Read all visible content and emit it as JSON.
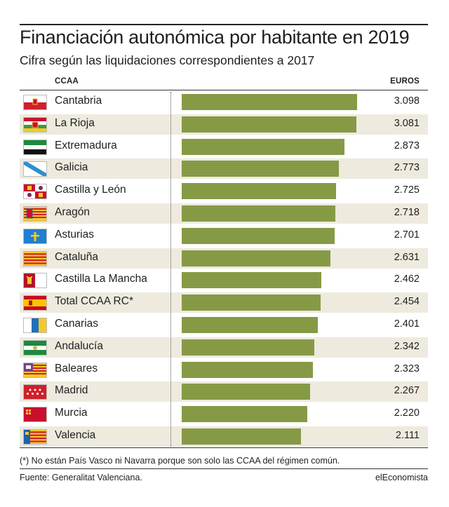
{
  "header": {
    "title": "Financiación autonómica por habitante en 2019",
    "subtitle": "Cifra según las liquidaciones correspondientes a 2017",
    "col_region": "CCAA",
    "col_value": "EUROS"
  },
  "chart_data": {
    "type": "bar",
    "orientation": "horizontal",
    "title": "Financiación autonómica por habitante en 2019",
    "subtitle": "Cifra según las liquidaciones correspondientes a 2017",
    "xlim": [
      0,
      3098
    ],
    "grid": false,
    "bar_color": "#869a46",
    "row_shade_color": "#eeeade",
    "categories": [
      "Cantabria",
      "La Rioja",
      "Extremadura",
      "Galicia",
      "Castilla y León",
      "Aragón",
      "Asturias",
      "Cataluña",
      "Castilla La Mancha",
      "Total CCAA RC*",
      "Canarias",
      "Andalucía",
      "Baleares",
      "Madrid",
      "Murcia",
      "Valencia"
    ],
    "values": [
      3098,
      3081,
      2873,
      2773,
      2725,
      2718,
      2701,
      2631,
      2462,
      2454,
      2401,
      2342,
      2323,
      2267,
      2220,
      2111
    ],
    "value_labels": [
      "3.098",
      "3.081",
      "2.873",
      "2.773",
      "2.725",
      "2.718",
      "2.701",
      "2.631",
      "2.462",
      "2.454",
      "2.401",
      "2.342",
      "2.323",
      "2.267",
      "2.220",
      "2.111"
    ],
    "flag_icons": [
      "cantabria-flag-icon",
      "la-rioja-flag-icon",
      "extremadura-flag-icon",
      "galicia-flag-icon",
      "castilla-y-leon-flag-icon",
      "aragon-flag-icon",
      "asturias-flag-icon",
      "cataluna-flag-icon",
      "castilla-la-mancha-flag-icon",
      "spain-flag-icon",
      "canarias-flag-icon",
      "andalucia-flag-icon",
      "baleares-flag-icon",
      "madrid-flag-icon",
      "murcia-flag-icon",
      "valencia-flag-icon"
    ]
  },
  "footer": {
    "note": "(*) No están País Vasco ni Navarra porque son solo las CCAA del régimen común.",
    "source": "Fuente: Generalitat Valenciana.",
    "brand": "elEconomista"
  }
}
